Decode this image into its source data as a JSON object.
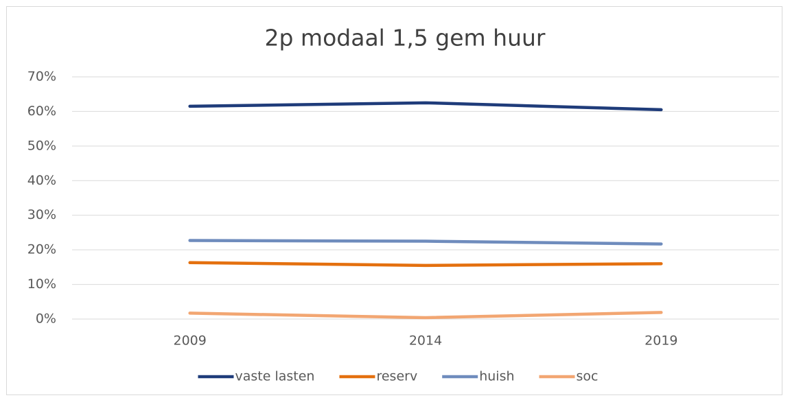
{
  "chart_data": {
    "type": "line",
    "title": "2p modaal 1,5 gem huur",
    "categories": [
      "2009",
      "2014",
      "2019"
    ],
    "series": [
      {
        "name": "vaste lasten",
        "color": "#1f3c7a",
        "values": [
          61.5,
          62.5,
          60.5
        ]
      },
      {
        "name": "reserv",
        "color": "#e4700f",
        "values": [
          16.3,
          15.5,
          16
        ]
      },
      {
        "name": "huish",
        "color": "#6f8cbd",
        "values": [
          22.7,
          22.5,
          21.7
        ]
      },
      {
        "name": "soc",
        "color": "#f2a672",
        "values": [
          1.7,
          0.4,
          1.9
        ]
      }
    ],
    "ylim": [
      0,
      70
    ],
    "yticks": [
      {
        "value": 0,
        "label": "0%"
      },
      {
        "value": 10,
        "label": "10%"
      },
      {
        "value": 20,
        "label": "20%"
      },
      {
        "value": 30,
        "label": "30%"
      },
      {
        "value": 40,
        "label": "40%"
      },
      {
        "value": 50,
        "label": "50%"
      },
      {
        "value": 60,
        "label": "60%"
      },
      {
        "value": 70,
        "label": "70%"
      }
    ],
    "grid": true,
    "legend": "bottom"
  }
}
